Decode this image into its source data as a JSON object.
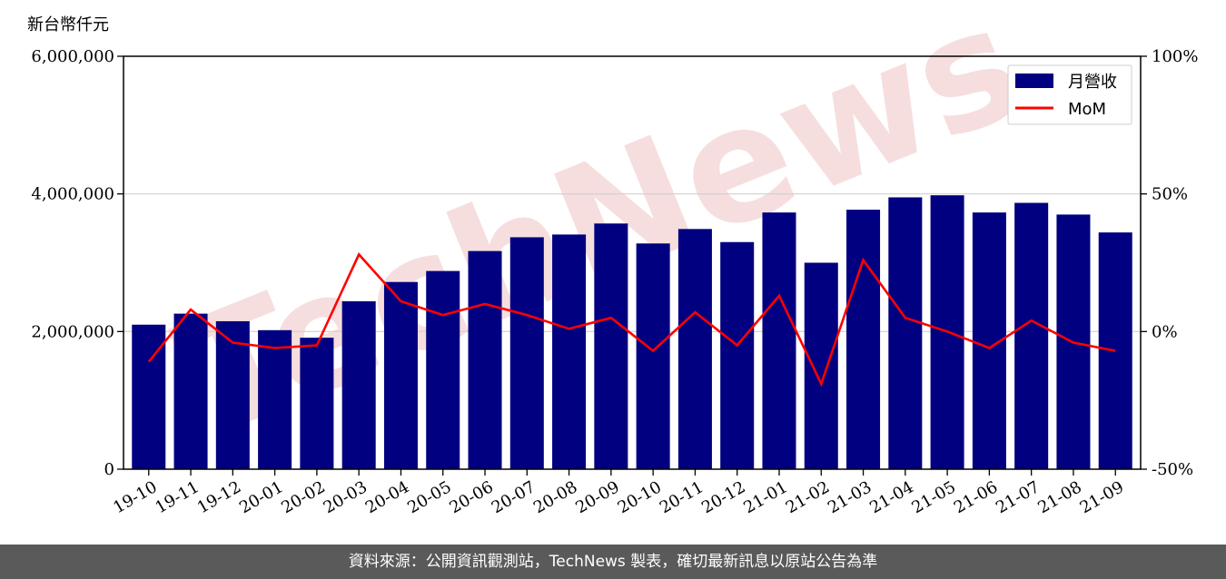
{
  "unit_label": "新台幣仟元",
  "watermark": "TechNews",
  "footer_text": "資料來源：公開資訊觀測站，TechNews 製表，確切最新訊息以原站公告為準",
  "colors": {
    "bar": "#000080",
    "line": "#ff0000",
    "footer_bg": "#5a5a5a",
    "watermark": "#f4d6d6"
  },
  "chart_data": {
    "type": "bar",
    "title": "",
    "xlabel": "",
    "ylabel": "新台幣仟元",
    "categories": [
      "19-10",
      "19-11",
      "19-12",
      "20-01",
      "20-02",
      "20-03",
      "20-04",
      "20-05",
      "20-06",
      "20-07",
      "20-08",
      "20-09",
      "20-10",
      "20-11",
      "20-12",
      "21-01",
      "21-02",
      "21-03",
      "21-04",
      "21-05",
      "21-06",
      "21-07",
      "21-08",
      "21-09"
    ],
    "series": [
      {
        "name": "月營收",
        "type": "bar",
        "axis": "left",
        "values": [
          2100000,
          2260000,
          2150000,
          2020000,
          1910000,
          2440000,
          2720000,
          2880000,
          3170000,
          3370000,
          3410000,
          3570000,
          3280000,
          3490000,
          3300000,
          3730000,
          3000000,
          3770000,
          3950000,
          3980000,
          3730000,
          3870000,
          3700000,
          3440000
        ]
      },
      {
        "name": "MoM",
        "type": "line",
        "axis": "right",
        "values": [
          -11,
          8,
          -4,
          -6,
          -5,
          28,
          11,
          6,
          10,
          6,
          1,
          5,
          -7,
          7,
          -5,
          13,
          -19,
          26,
          5,
          0,
          -6,
          4,
          -4,
          -7
        ]
      }
    ],
    "ylim": [
      0,
      6000000
    ],
    "yticks": [
      0,
      2000000,
      4000000,
      6000000
    ],
    "ytick_labels": [
      "0",
      "2,000,000",
      "4,000,000",
      "6,000,000"
    ],
    "y2lim": [
      -50,
      100
    ],
    "y2ticks": [
      -50,
      0,
      50,
      100
    ],
    "y2tick_labels": [
      "-50%",
      "0%",
      "50%",
      "100%"
    ],
    "grid": true,
    "legend": "top-right"
  }
}
